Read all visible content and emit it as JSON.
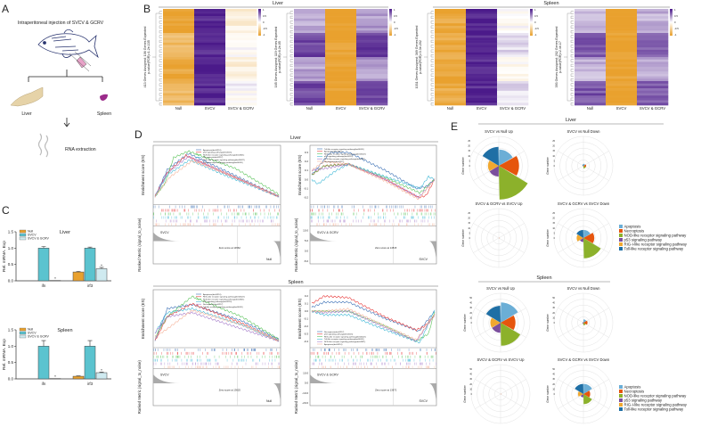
{
  "panel_labels": {
    "a": "A",
    "b": "B",
    "c": "C",
    "d": "D",
    "e": "E"
  },
  "panel_a": {
    "title": "Intraperitoneal injection of SVCV & GCRV",
    "liver": "Liver",
    "spleen": "Spleen",
    "rna": "RNA extraction"
  },
  "panel_b": {
    "groups": [
      "Liver",
      "Spleen"
    ],
    "legend_ticks": [
      "1",
      "0.5",
      "0",
      "-0.5",
      "-1"
    ],
    "heatmaps": [
      {
        "ylabel1": "413 Genes Assigned; 106 Genes Expected",
        "ylabel2": "p-value(FDR)=1.2e-135",
        "columns": [
          "Null",
          "SVCV",
          "SVCV & GCRV"
        ],
        "col_means": [
          -0.85,
          0.95,
          -0.1
        ]
      },
      {
        "ylabel1": "165 Genes Assigned; 119 Genes Expected",
        "ylabel2": "p-value(FDR)=6.2e-05",
        "columns": [
          "Null",
          "SVCV",
          "SVCV & GCRV"
        ],
        "col_means": [
          0.55,
          -1,
          0.6
        ]
      },
      {
        "ylabel1": "1031 Genes Assigned; 369 Genes Expected",
        "ylabel2": "p-value(FDR)=3.3e-202",
        "columns": [
          "Null",
          "SVCV",
          "SVCV & GCRV"
        ],
        "col_means": [
          -0.9,
          0.95,
          0.05
        ]
      },
      {
        "ylabel1": "393 Genes Assigned; 202 Genes Expected",
        "ylabel2": "p-value(FDR)=2.4e-17",
        "columns": [
          "Null",
          "SVCV",
          "SVCV & GCRV"
        ],
        "col_means": [
          0.5,
          -1,
          0.5
        ]
      }
    ]
  },
  "panel_c": {
    "legend": [
      "Null",
      "SVCV",
      "SVCV & GCRV"
    ],
    "ylabel": "Rel. mRNA. Exp",
    "y_ticks": [
      "0.0",
      "0.5",
      "1.0",
      "1.5"
    ],
    "genes": [
      "ifn",
      "irf3"
    ],
    "star": "*"
  },
  "panel_d": {
    "groups": [
      "Liver",
      "Spleen"
    ],
    "es_label": "Enrichment score (ES)",
    "rm_label": "Ranked Metric (signal_to_noise)",
    "plots": [
      {
        "pos_label": "SVCV",
        "neg_label": "Null",
        "zero": "Zero score at 14562",
        "ylim": [
          -0.05,
          0.45
        ],
        "es_ticks": [],
        "rm_ticks": [],
        "legend": [
          "Apoptosis(dre04210)",
          "p53 signaling pathway(dre04115)",
          "NOD-like receptor signaling pathway(dre04621)",
          "Necroptosis(dre04217)",
          "RIG-I-like receptor signaling pathway(dre04622)",
          "Toll-like receptor signaling pathway(dre04620)"
        ],
        "curves": [
          [
            [
              0,
              0
            ],
            [
              0.1,
              0.25
            ],
            [
              0.27,
              0.4
            ],
            [
              0.6,
              0.22
            ],
            [
              1,
              0
            ]
          ],
          [
            [
              0,
              0
            ],
            [
              0.1,
              0.22
            ],
            [
              0.25,
              0.38
            ],
            [
              0.6,
              0.2
            ],
            [
              1,
              0
            ]
          ],
          [
            [
              0,
              0
            ],
            [
              0.08,
              0.12
            ],
            [
              0.15,
              0.36
            ],
            [
              0.27,
              0.42
            ],
            [
              0.65,
              0.26
            ],
            [
              1,
              0.02
            ]
          ],
          [
            [
              0,
              0
            ],
            [
              0.1,
              0.2
            ],
            [
              0.28,
              0.34
            ],
            [
              0.6,
              0.18
            ],
            [
              1,
              0
            ]
          ],
          [
            [
              0,
              0
            ],
            [
              0.1,
              0.22
            ],
            [
              0.27,
              0.37
            ],
            [
              0.6,
              0.2
            ],
            [
              1,
              0
            ]
          ],
          [
            [
              0,
              0
            ],
            [
              0.12,
              0.18
            ],
            [
              0.3,
              0.33
            ],
            [
              0.6,
              0.2
            ],
            [
              1,
              0
            ]
          ]
        ]
      },
      {
        "pos_label": "SVCV & GCRV",
        "neg_label": "SVCV",
        "zero": "Zero score at 14515",
        "ylim": [
          -0.25,
          0.35
        ],
        "es_ticks": [
          "0.3",
          "0.2",
          "0.1",
          "0.0",
          "-0.1",
          "-0.2"
        ],
        "rm_ticks": [
          "10.0",
          "5.0",
          "0.0",
          "-5.0"
        ],
        "legend": [
          "Toll-like receptor signaling pathway(dre04620)",
          "Apoptosis(dre04210)",
          "RIG-I-like receptor signaling pathway(dre04622)",
          "p53 signaling pathway(dre04115)",
          "NOD-like receptor signaling pathway(dre04621)",
          "Necroptosis(dre04217)"
        ],
        "curves": [
          [
            [
              0,
              0.05
            ],
            [
              0.15,
              0.3
            ],
            [
              0.3,
              0.3
            ],
            [
              0.6,
              0.1
            ],
            [
              0.85,
              -0.1
            ],
            [
              0.93,
              -0.08
            ],
            [
              1,
              0
            ]
          ],
          [
            [
              0,
              0.05
            ],
            [
              0.1,
              0.15
            ],
            [
              0.3,
              0.17
            ],
            [
              0.6,
              0
            ],
            [
              0.87,
              -0.2
            ],
            [
              0.93,
              -0.18
            ],
            [
              1,
              0
            ]
          ],
          [
            [
              0,
              0.05
            ],
            [
              0.1,
              0.15
            ],
            [
              0.3,
              0.17
            ],
            [
              0.6,
              0.02
            ],
            [
              0.88,
              -0.15
            ],
            [
              1,
              0
            ]
          ],
          [
            [
              0,
              0
            ],
            [
              0.05,
              -0.05
            ],
            [
              0.2,
              0.1
            ],
            [
              0.3,
              0.17
            ],
            [
              0.6,
              0.03
            ],
            [
              0.88,
              -0.1
            ],
            [
              0.95,
              0.03
            ],
            [
              1,
              0
            ]
          ],
          [
            [
              0,
              0.1
            ],
            [
              0.1,
              0.12
            ],
            [
              0.3,
              0.17
            ],
            [
              0.6,
              0
            ],
            [
              0.87,
              -0.2
            ],
            [
              1,
              0
            ]
          ],
          [
            [
              0,
              0.1
            ],
            [
              0.1,
              0.2
            ],
            [
              0.3,
              0.17
            ],
            [
              0.6,
              -0.02
            ],
            [
              0.87,
              -0.22
            ],
            [
              1,
              0
            ]
          ]
        ]
      },
      {
        "pos_label": "SVCV",
        "neg_label": "Null",
        "zero": "Zero score at 13625",
        "ylim": [
          -0.05,
          0.6
        ],
        "es_ticks": [],
        "rm_ticks": [],
        "legend": [
          "Apoptosis(dre04210)",
          "RIG-I-like receptor signaling pathway(dre04622)",
          "NOD-like receptor signaling pathway(dre04621)",
          "p53 signaling pathway(dre04115)",
          "Necroptosis(dre04217)",
          "Toll-like receptor signaling pathway(dre04620)"
        ],
        "curves": [
          [
            [
              0,
              0
            ],
            [
              0.1,
              0.4
            ],
            [
              0.3,
              0.45
            ],
            [
              0.7,
              0.25
            ],
            [
              1,
              0.02
            ]
          ],
          [
            [
              0,
              0
            ],
            [
              0.1,
              0.3
            ],
            [
              0.3,
              0.46
            ],
            [
              0.7,
              0.22
            ],
            [
              1,
              0
            ]
          ],
          [
            [
              0,
              0.05
            ],
            [
              0.1,
              0.3
            ],
            [
              0.3,
              0.55
            ],
            [
              0.7,
              0.3
            ],
            [
              1,
              0.02
            ]
          ],
          [
            [
              0,
              0.1
            ],
            [
              0.1,
              0.35
            ],
            [
              0.3,
              0.4
            ],
            [
              0.7,
              0.2
            ],
            [
              1,
              0
            ]
          ],
          [
            [
              0,
              0.1
            ],
            [
              0.1,
              0.3
            ],
            [
              0.3,
              0.35
            ],
            [
              0.7,
              0.15
            ],
            [
              1,
              0
            ]
          ],
          [
            [
              0,
              0.05
            ],
            [
              0.1,
              0.15
            ],
            [
              0.3,
              0.38
            ],
            [
              0.7,
              0.2
            ],
            [
              1,
              0
            ]
          ]
        ]
      },
      {
        "pos_label": "SVCV & GCRV",
        "neg_label": "SVCV",
        "zero": "Zero score at 13672",
        "ylim": [
          -0.45,
          0.25
        ],
        "es_ticks": [
          "0.2",
          "0.1",
          "0.0",
          "-0.1",
          "-0.2",
          "-0.3",
          "-0.4"
        ],
        "rm_ticks": [
          "10.0",
          "0.0",
          "-10.0",
          "-20.0"
        ],
        "legend": [
          "Necroptosis(dre04217)",
          "p53 signaling pathway(dre04115)",
          "RIG-I-like receptor signaling pathway(dre04622)",
          "Toll-like receptor signaling pathway(dre04620)",
          "NOD-like receptor signaling pathway(dre04621)",
          "Apoptosis(dre04210)"
        ],
        "curves": [
          [
            [
              0,
              0.05
            ],
            [
              0.1,
              0.12
            ],
            [
              0.3,
              0.12
            ],
            [
              0.6,
              -0.1
            ],
            [
              0.8,
              -0.22
            ],
            [
              0.87,
              -0.27
            ],
            [
              1,
              0
            ]
          ],
          [
            [
              0,
              0.1
            ],
            [
              0.1,
              0.2
            ],
            [
              0.3,
              0.18
            ],
            [
              0.6,
              -0.08
            ],
            [
              0.85,
              -0.25
            ],
            [
              0.92,
              -0.2
            ],
            [
              1,
              -0.05
            ]
          ],
          [
            [
              0,
              0
            ],
            [
              0.1,
              0
            ],
            [
              0.3,
              0
            ],
            [
              0.6,
              -0.2
            ],
            [
              0.85,
              -0.4
            ],
            [
              0.95,
              -0.3
            ],
            [
              1,
              0
            ]
          ],
          [
            [
              0,
              0
            ],
            [
              0.1,
              -0.05
            ],
            [
              0.3,
              -0.05
            ],
            [
              0.6,
              -0.25
            ],
            [
              0.88,
              -0.42
            ],
            [
              1,
              0.02
            ]
          ],
          [
            [
              0,
              0
            ],
            [
              0.1,
              -0.02
            ],
            [
              0.3,
              0
            ],
            [
              0.6,
              -0.22
            ],
            [
              0.85,
              -0.4
            ],
            [
              1,
              -0.05
            ]
          ],
          [
            [
              0,
              0
            ],
            [
              0.1,
              0
            ],
            [
              0.3,
              0.03
            ],
            [
              0.6,
              -0.2
            ],
            [
              0.85,
              -0.38
            ],
            [
              1,
              -0.05
            ]
          ]
        ]
      }
    ]
  },
  "panel_e": {
    "groups": [
      "Liver",
      "Spleen"
    ],
    "rlabel": "Gene number",
    "legend": [
      "Apoptosis",
      "Necroptosis",
      "NOD-like receptor signaling pathway",
      "p53 signaling pathway",
      "RIG-I-like receptor signaling pathway",
      "Toll-like receptor signaling pathway"
    ]
  },
  "colors": {
    "orange": "#e9a12e",
    "purple": "#4b1a8a",
    "teal": "#5bc3cf",
    "light_teal": "#cfeaf0",
    "pathways": [
      "#6baed6",
      "#e6550d",
      "#8cb12b",
      "#7b4f9d",
      "#f0a830",
      "#1f6fa5"
    ],
    "gsea": [
      "#3a6fb5",
      "#e83a3a",
      "#5cc45c",
      "#3fb8d6",
      "#a57bc9",
      "#f5b39a"
    ]
  },
  "chart_data": [
    {
      "type": "bar",
      "title": "Liver",
      "ylabel": "Rel. mRNA. Exp",
      "ylim": [
        0,
        1.5
      ],
      "categories": [
        "ifn",
        "irf3"
      ],
      "series": [
        {
          "name": "Null",
          "values": [
            0,
            0.27
          ]
        },
        {
          "name": "SVCV",
          "values": [
            1.0,
            1.0
          ]
        },
        {
          "name": "SVCV & GCRV",
          "values": [
            0.01,
            0.37
          ]
        }
      ],
      "errors": [
        {
          "name": "Null",
          "values": [
            0,
            0.02
          ]
        },
        {
          "name": "SVCV",
          "values": [
            0.05,
            0.03
          ]
        },
        {
          "name": "SVCV & GCRV",
          "values": [
            0,
            0.04
          ]
        }
      ]
    },
    {
      "type": "bar",
      "title": "Spleen",
      "ylabel": "Rel. mRNA. Exp",
      "ylim": [
        0,
        1.5
      ],
      "categories": [
        "ifn",
        "irf3"
      ],
      "series": [
        {
          "name": "Null",
          "values": [
            0,
            0.08
          ]
        },
        {
          "name": "SVCV",
          "values": [
            1.0,
            1.0
          ]
        },
        {
          "name": "SVCV & GCRV",
          "values": [
            0.01,
            0.19
          ]
        }
      ],
      "errors": [
        {
          "name": "Null",
          "values": [
            0,
            0.01
          ]
        },
        {
          "name": "SVCV",
          "values": [
            0.17,
            0.17
          ]
        },
        {
          "name": "SVCV & GCRV",
          "values": [
            0,
            0.02
          ]
        }
      ]
    },
    {
      "type": "pie",
      "subtype": "rose",
      "group": "Liver",
      "title": "SVCV vs Null Up",
      "rmax": 25,
      "r_ticks": [
        "0",
        "5",
        "10",
        "15",
        "20",
        "25"
      ],
      "values": [
        12,
        15,
        25,
        8,
        8,
        14
      ]
    },
    {
      "type": "pie",
      "subtype": "rose",
      "group": "Liver",
      "title": "SVCV vs Null Down",
      "rmax": 25,
      "r_ticks": [
        "0",
        "5",
        "10",
        "15",
        "20",
        "25"
      ],
      "values": [
        1.5,
        2,
        2,
        0.5,
        0.5,
        1
      ]
    },
    {
      "type": "pie",
      "subtype": "rose",
      "group": "Liver",
      "title": "SVCV & GCRV vs SVCV Up",
      "rmax": 25,
      "r_ticks": [
        "0",
        "5",
        "10",
        "15",
        "20",
        "25"
      ],
      "values": [
        0,
        0.3,
        0,
        0,
        0,
        0
      ]
    },
    {
      "type": "pie",
      "subtype": "rose",
      "group": "Liver",
      "title": "SVCV & GCRV vs SVCV Down",
      "rmax": 25,
      "r_ticks": [
        "0",
        "5",
        "10",
        "15",
        "20",
        "25"
      ],
      "values": [
        6,
        8,
        15,
        3,
        5,
        6
      ]
    },
    {
      "type": "pie",
      "subtype": "rose",
      "group": "Spleen",
      "title": "SVCV vs Null Up",
      "rmax": 50,
      "r_ticks": [
        "0",
        "10",
        "20",
        "30",
        "40",
        "50"
      ],
      "values": [
        30,
        22,
        34,
        15,
        15,
        25
      ]
    },
    {
      "type": "pie",
      "subtype": "rose",
      "group": "Spleen",
      "title": "SVCV vs Null Down",
      "rmax": 50,
      "r_ticks": [
        "0",
        "10",
        "20",
        "30",
        "40",
        "50"
      ],
      "values": [
        5,
        6,
        4,
        2,
        1,
        1
      ]
    },
    {
      "type": "pie",
      "subtype": "rose",
      "group": "Spleen",
      "title": "SVCV & GCRV vs SVCV Up",
      "rmax": 50,
      "r_ticks": [
        "0",
        "10",
        "20",
        "30",
        "40",
        "50"
      ],
      "values": [
        0,
        0.5,
        0,
        0,
        0,
        0
      ]
    },
    {
      "type": "pie",
      "subtype": "rose",
      "group": "Spleen",
      "title": "SVCV & GCRV vs SVCV Down",
      "rmax": 50,
      "r_ticks": [
        "0",
        "10",
        "20",
        "30",
        "40",
        "50"
      ],
      "values": [
        15,
        10,
        15,
        5,
        8,
        15
      ]
    }
  ]
}
